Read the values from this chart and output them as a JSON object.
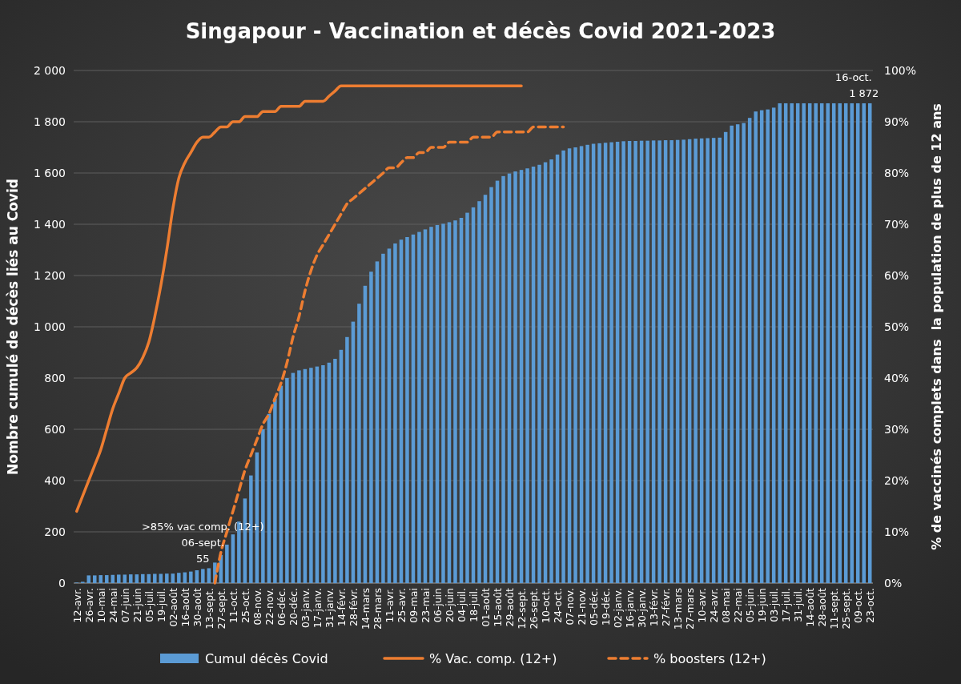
{
  "chart_data": {
    "type": "bar",
    "title": "Singapour - Vaccination et décès Covid 2021-2023",
    "ylabel": "Nombre cumulé de décès liés au Covid",
    "y2label": "% de vaccinés complets dans  la population de plus de 12 ans",
    "categories": [
      "12-avr.",
      null,
      "26-avr.",
      null,
      "10-mai",
      null,
      "24-mai",
      null,
      "07-juin",
      null,
      "21-juin",
      null,
      "05-juil.",
      null,
      "19-juil.",
      null,
      "02-août",
      null,
      "16-août",
      null,
      "30-août",
      null,
      "13-sept.",
      null,
      "27-sept.",
      null,
      "11-oct.",
      null,
      "25-oct.",
      null,
      "08-nov.",
      null,
      "22-nov.",
      null,
      "06-déc.",
      null,
      "20-déc.",
      null,
      "03-janv.",
      null,
      "17-janv.",
      null,
      "31-janv.",
      null,
      "14-févr.",
      null,
      "28-févr.",
      null,
      "14-mars",
      null,
      "28-mars",
      null,
      "11-avr.",
      null,
      "25-avr.",
      null,
      "09-mai",
      null,
      "23-mai",
      null,
      "06-juin",
      null,
      "20-juin",
      null,
      "04-juil.",
      null,
      "18-juil.",
      null,
      "01-août",
      null,
      "15-août",
      null,
      "29-août",
      null,
      "12-sept.",
      null,
      "26-sept.",
      null,
      "10-oct.",
      null,
      "24-oct.",
      null,
      "07-nov.",
      null,
      "21-nov.",
      null,
      "05-déc.",
      null,
      "19-déc.",
      null,
      "02-janv.",
      null,
      "16-janv.",
      null,
      "30-janv.",
      null,
      "13-févr.",
      null,
      "27-févr.",
      null,
      "13-mars",
      null,
      "27-mars",
      null,
      "10-avr.",
      null,
      "24-avr.",
      null,
      "08-mai",
      null,
      "22-mai",
      null,
      "05-juin",
      null,
      "19-juin",
      null,
      "03-juil.",
      null,
      "17-juil.",
      null,
      "31-juil.",
      null,
      "14-août",
      null,
      "28-août",
      null,
      "11-sept.",
      null,
      "25-sept.",
      null,
      "09-oct.",
      null,
      "23-oct."
    ],
    "series": [
      {
        "name": "Cumul décès Covid",
        "color": "#5b9bd5",
        "values": [
          2,
          5,
          30,
          30,
          31,
          31,
          32,
          33,
          33,
          34,
          34,
          35,
          35,
          36,
          36,
          37,
          37,
          40,
          42,
          45,
          50,
          55,
          58,
          80,
          110,
          150,
          190,
          240,
          330,
          420,
          510,
          600,
          660,
          720,
          770,
          800,
          820,
          830,
          835,
          840,
          845,
          850,
          860,
          875,
          910,
          960,
          1020,
          1090,
          1160,
          1215,
          1255,
          1285,
          1305,
          1325,
          1340,
          1350,
          1360,
          1370,
          1380,
          1390,
          1397,
          1402,
          1408,
          1415,
          1425,
          1445,
          1466,
          1490,
          1515,
          1545,
          1570,
          1588,
          1598,
          1606,
          1612,
          1618,
          1625,
          1632,
          1642,
          1653,
          1672,
          1688,
          1696,
          1700,
          1705,
          1710,
          1714,
          1716,
          1718,
          1720,
          1722,
          1724,
          1725,
          1725,
          1726,
          1726,
          1727,
          1727,
          1728,
          1728,
          1729,
          1730,
          1732,
          1734,
          1735,
          1736,
          1737,
          1738,
          1760,
          1785,
          1790,
          1795,
          1815,
          1840,
          1845,
          1848,
          1855,
          1872,
          1872,
          1872,
          1872,
          1872,
          1872,
          1872,
          1872,
          1872,
          1872,
          1872,
          1872,
          1872,
          1872,
          1872,
          1872
        ],
        "value_labels": [
          null,
          null,
          null,
          null,
          null,
          null,
          null,
          null,
          null,
          null,
          null,
          null,
          null,
          null,
          null,
          null,
          null,
          null,
          null,
          null,
          null,
          "55",
          null,
          null,
          null,
          null,
          null,
          null,
          null,
          null,
          null,
          null,
          null,
          null,
          null,
          null,
          null,
          null,
          null,
          null,
          null,
          null,
          null,
          null,
          null,
          null,
          null,
          null,
          null,
          null,
          null,
          null,
          null,
          null,
          null,
          null,
          null,
          null,
          null,
          null,
          null,
          null,
          null,
          null,
          null,
          null,
          null,
          null,
          null,
          null,
          null,
          null,
          null,
          null,
          null,
          null,
          null,
          null,
          null,
          null,
          null,
          null,
          null,
          null,
          null,
          null,
          null,
          null,
          null,
          null,
          null,
          null,
          null,
          null,
          null,
          null,
          null,
          null,
          null,
          null,
          null,
          null,
          null,
          null,
          null,
          null,
          null,
          null,
          null,
          null,
          null,
          null,
          null,
          null,
          null,
          null,
          null,
          null,
          null,
          null,
          null,
          null,
          null,
          null,
          null,
          null,
          null,
          null,
          null,
          null,
          null,
          "1 872",
          null
        ]
      },
      {
        "name": "% Vac. comp. (12+)",
        "type": "line",
        "axis": "y2",
        "color": "#ed7d31",
        "line_style": "solid",
        "values": [
          14,
          17,
          20,
          23,
          26,
          30,
          34,
          37,
          40,
          41,
          42,
          44,
          47,
          52,
          58,
          65,
          73,
          79,
          82,
          84,
          86,
          87,
          87,
          88,
          89,
          89,
          90,
          90,
          91,
          91,
          91,
          92,
          92,
          92,
          93,
          93,
          93,
          93,
          94,
          94,
          94,
          94,
          95,
          96,
          97,
          97,
          97,
          97,
          97,
          97,
          97,
          97,
          97,
          97,
          97,
          97,
          97,
          97,
          97,
          97,
          97,
          97,
          97,
          97,
          97,
          97,
          97,
          97,
          97,
          97,
          97,
          97,
          97,
          97,
          97,
          null,
          null,
          null,
          null,
          null,
          null,
          null,
          null,
          null,
          null,
          null,
          null,
          null,
          null,
          null,
          null,
          null,
          null,
          null,
          null,
          null,
          null,
          null,
          null,
          null,
          null,
          null,
          null,
          null,
          null,
          null,
          null,
          null,
          null,
          null,
          null,
          null,
          null,
          null,
          null,
          null,
          null,
          null,
          null,
          null,
          null,
          null,
          null,
          null,
          null,
          null,
          null,
          null,
          null,
          null,
          null,
          null,
          null
        ]
      },
      {
        "name": "% boosters (12+)",
        "type": "line",
        "axis": "y2",
        "color": "#ed7d31",
        "line_style": "dashed",
        "values": [
          null,
          null,
          null,
          null,
          null,
          null,
          null,
          null,
          null,
          null,
          null,
          null,
          null,
          null,
          null,
          null,
          null,
          null,
          null,
          null,
          null,
          null,
          null,
          0,
          6,
          10,
          14,
          18,
          22,
          25,
          28,
          31,
          33,
          36,
          39,
          43,
          48,
          52,
          57,
          61,
          64,
          66,
          68,
          70,
          72,
          74,
          75,
          76,
          77,
          78,
          79,
          80,
          81,
          81,
          82,
          83,
          83,
          84,
          84,
          85,
          85,
          85,
          86,
          86,
          86,
          86,
          87,
          87,
          87,
          87,
          88,
          88,
          88,
          88,
          88,
          88,
          89,
          89,
          89,
          89,
          89,
          89,
          null,
          null,
          null,
          null,
          null,
          null,
          null,
          null,
          null,
          null,
          null,
          null,
          null,
          null,
          null,
          null,
          null,
          null,
          null,
          null,
          null,
          null,
          null,
          null,
          null,
          null,
          null,
          null,
          null,
          null,
          null,
          null,
          null,
          null,
          null,
          null,
          null,
          null,
          null,
          null,
          null,
          null,
          null,
          null,
          null,
          null,
          null,
          null,
          null,
          null,
          null
        ]
      }
    ],
    "ylim": [
      0,
      2000
    ],
    "yticks": [
      0,
      200,
      400,
      600,
      800,
      {
        "value": 1000,
        "label": "1 000"
      },
      {
        "value": 1200,
        "label": "1 200"
      },
      {
        "value": 1400,
        "label": "1 400"
      },
      {
        "value": 1600,
        "label": "1 600"
      },
      {
        "value": 1800,
        "label": "1 800"
      },
      {
        "value": 2000,
        "label": "2 000"
      }
    ],
    "y2lim": [
      0,
      100
    ],
    "y2ticks": [
      {
        "value": 0,
        "label": "0%"
      },
      {
        "value": 10,
        "label": "10%"
      },
      {
        "value": 20,
        "label": "20%"
      },
      {
        "value": 30,
        "label": "30%"
      },
      {
        "value": 40,
        "label": "40%"
      },
      {
        "value": 50,
        "label": "50%"
      },
      {
        "value": 60,
        "label": "60%"
      },
      {
        "value": 70,
        "label": "70%"
      },
      {
        "value": 80,
        "label": "80%"
      },
      {
        "value": 90,
        "label": "90%"
      },
      {
        "value": 100,
        "label": "100%"
      }
    ],
    "grid": "y",
    "legend": "bottom",
    "annotations": [
      {
        "text": ">85% vac comp. (12+)\n06-sept.",
        "y": 55
      },
      {
        "text": "16-oct.",
        "y": 1872
      }
    ]
  }
}
